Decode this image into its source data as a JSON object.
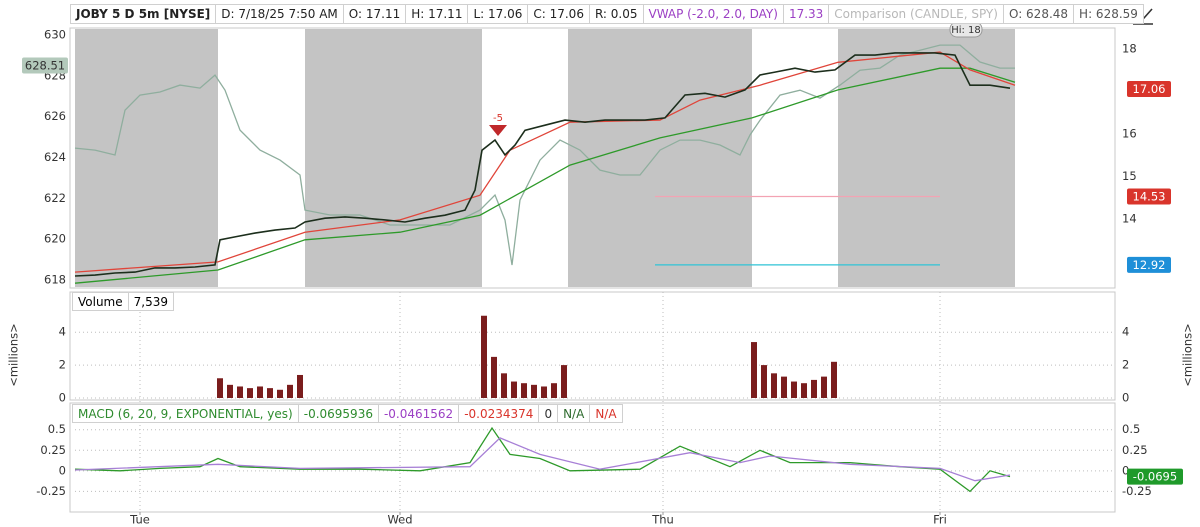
{
  "header": {
    "items": [
      {
        "text": "JOBY 5 D 5m [NYSE]",
        "color": "#222222",
        "bold": true
      },
      {
        "text": "D: 7/18/25 7:50 AM",
        "color": "#222222"
      },
      {
        "text": "O: 17.11",
        "color": "#222222"
      },
      {
        "text": "H: 17.11",
        "color": "#222222"
      },
      {
        "text": "L: 17.06",
        "color": "#222222"
      },
      {
        "text": "C: 17.06",
        "color": "#222222"
      },
      {
        "text": "R: 0.05",
        "color": "#222222"
      },
      {
        "text": "VWAP (-2.0, 2.0, DAY)",
        "color": "#9b3fc4"
      },
      {
        "text": "17.33",
        "color": "#9b3fc4"
      },
      {
        "text": "Comparison (CANDLE, SPY)",
        "color": "#b8b8b8"
      },
      {
        "text": "O: 628.48",
        "color": "#555555"
      },
      {
        "text": "H: 628.59",
        "color": "#555555"
      }
    ]
  },
  "chart_data": [
    {
      "type": "line",
      "ylim": [
        617.65,
        630.25
      ],
      "yticks": [
        618,
        620,
        622,
        624,
        626,
        628,
        630
      ],
      "y2lim": [
        12.4,
        18.45
      ],
      "y2ticks": [
        14,
        15,
        16,
        18
      ],
      "annotations": [
        "Hi: 18",
        "-5"
      ],
      "series": [
        {
          "name": "SPY",
          "color": "#8fae9e",
          "axis": "y",
          "x": [
            0,
            2,
            4,
            5,
            6.5,
            8.5,
            10.5,
            12.5,
            14,
            15,
            16.5,
            18.5,
            20.5,
            22.5,
            23,
            25.5,
            28.5,
            31.5,
            34.5,
            37.5,
            40.5,
            42,
            43,
            43.7,
            44.5,
            46.5,
            48.5,
            50.5,
            52.5,
            54.5,
            56.5,
            58.5,
            60.5,
            62.5,
            64.5,
            66.5,
            67.5,
            68.5,
            70.5,
            72.5,
            74.5,
            76.5,
            78.5,
            80.5,
            82.5,
            84.5,
            86.5,
            88.5,
            90.5,
            92.5,
            94
          ],
          "values": [
            624.46,
            624.36,
            624.12,
            626.32,
            627.06,
            627.21,
            627.55,
            627.4,
            628.04,
            627.3,
            625.34,
            624.36,
            623.87,
            623.14,
            621.42,
            621.18,
            621.18,
            620.69,
            620.69,
            620.69,
            621.42,
            622.16,
            620.93,
            618.73,
            621.91,
            623.87,
            624.85,
            624.36,
            623.38,
            623.14,
            623.14,
            624.36,
            624.85,
            624.85,
            624.61,
            624.12,
            625.1,
            625.83,
            627.06,
            627.3,
            626.91,
            627.55,
            628.28,
            628.38,
            629.02,
            629.26,
            629.51,
            629.51,
            628.68,
            628.38,
            628.38
          ]
        },
        {
          "color": "#2e9a2a",
          "axis": "y2",
          "x": [
            0,
            14.3,
            23,
            32.5,
            40.5,
            49.5,
            58.5,
            67.7,
            76.3,
            86.5,
            89.5,
            94
          ],
          "values": [
            12.49,
            12.8,
            13.51,
            13.69,
            14.09,
            15.27,
            15.91,
            16.38,
            17.04,
            17.55,
            17.55,
            17.22
          ]
        },
        {
          "color": "#e0453a",
          "axis": "y2",
          "x": [
            0,
            14.3,
            23,
            32.5,
            40.5,
            43.5,
            49.5,
            58.5,
            62.5,
            68.5,
            76.3,
            86.5,
            89.5,
            94
          ],
          "values": [
            12.75,
            12.99,
            13.69,
            13.98,
            14.56,
            15.62,
            16.28,
            16.33,
            16.8,
            17.15,
            17.69,
            17.93,
            17.51,
            17.15
          ]
        },
        {
          "name": "JOBY",
          "color": "#1c2e1c",
          "axis": "y2",
          "x": [
            0,
            2,
            4,
            6,
            8,
            10,
            12,
            14,
            14.5,
            16,
            18,
            20,
            22,
            23,
            25,
            27,
            29,
            31,
            33,
            35,
            37,
            39,
            40,
            40.7,
            42,
            43,
            44,
            45,
            47,
            49,
            51,
            53,
            55,
            57,
            59,
            61,
            63,
            65,
            67,
            68.5,
            70,
            72,
            74,
            76,
            78,
            80,
            82,
            84,
            86,
            88,
            89.5,
            91.5,
            93.5
          ],
          "values": [
            12.66,
            12.68,
            12.73,
            12.75,
            12.85,
            12.85,
            12.87,
            12.92,
            13.51,
            13.58,
            13.67,
            13.74,
            13.79,
            13.93,
            14.02,
            14.05,
            14.02,
            13.98,
            13.93,
            14.02,
            14.09,
            14.21,
            14.68,
            15.62,
            15.86,
            15.51,
            15.74,
            16.09,
            16.21,
            16.33,
            16.28,
            16.33,
            16.33,
            16.33,
            16.38,
            16.92,
            16.96,
            16.87,
            17.04,
            17.39,
            17.46,
            17.55,
            17.46,
            17.51,
            17.86,
            17.86,
            17.91,
            17.91,
            17.91,
            17.86,
            17.15,
            17.15,
            17.08
          ]
        }
      ],
      "levels": [
        {
          "value": 17.06,
          "axis": "y2",
          "color": "#d9342b",
          "text_color": "#ffffff"
        },
        {
          "value": 14.53,
          "axis": "y2",
          "color": "#d9342b",
          "text_color": "#ffffff",
          "x": [
            58,
            86.5
          ],
          "line_color": "#f3a3b3"
        },
        {
          "value": 12.92,
          "axis": "y2",
          "color": "#1e8fd8",
          "text_color": "#ffffff",
          "x": [
            58,
            86.5
          ],
          "line_color": "#2fc3d6"
        },
        {
          "value": 628.51,
          "axis": "y",
          "color": "#b3c9bb",
          "text_color": "#333333"
        }
      ]
    },
    {
      "type": "bar",
      "title": "Volume",
      "last_value": "7,539",
      "y_label": "<millions>",
      "ylim": [
        0,
        6.2
      ],
      "yticks": [
        0,
        2,
        4
      ],
      "grid": true,
      "color": "#7a1d1d",
      "x": [
        14.5,
        15.5,
        16.5,
        17.5,
        18.5,
        19.5,
        20.5,
        21.5,
        22.5,
        40.9,
        41.9,
        42.9,
        43.9,
        44.9,
        45.9,
        46.9,
        47.9,
        48.9,
        67.9,
        68.9,
        69.9,
        70.9,
        71.9,
        72.9,
        73.9,
        74.9,
        75.9
      ],
      "values": [
        1.2,
        0.8,
        0.7,
        0.6,
        0.7,
        0.6,
        0.5,
        0.8,
        1.4,
        5.0,
        2.5,
        1.5,
        1.0,
        0.9,
        0.8,
        0.7,
        0.9,
        2.0,
        3.4,
        2.0,
        1.5,
        1.3,
        1.0,
        0.9,
        1.1,
        1.3,
        2.2
      ]
    },
    {
      "type": "line",
      "header": [
        {
          "text": "MACD (6, 20, 9, EXPONENTIAL, yes)",
          "color": "#2e8b2e"
        },
        {
          "text": "-0.0695936",
          "color": "#2e8b2e"
        },
        {
          "text": "-0.0461562",
          "color": "#9b3fc4"
        },
        {
          "text": "-0.0234374",
          "color": "#d9342b"
        },
        {
          "text": "0",
          "color": "#333333"
        },
        {
          "text": "N/A",
          "color": "#2e6b2e"
        },
        {
          "text": "N/A",
          "color": "#d9342b"
        }
      ],
      "xlim": [
        0,
        104
      ],
      "xticks": [
        {
          "value": 6.5,
          "label": "Tue"
        },
        {
          "value": 32.5,
          "label": "Wed"
        },
        {
          "value": 58.8,
          "label": "Thu"
        },
        {
          "value": 86.5,
          "label": "Fri"
        }
      ],
      "ylim": [
        -0.5,
        0.8
      ],
      "yticks": [
        -0.25,
        0,
        0.25,
        0.5
      ],
      "grid": true,
      "series": [
        {
          "color": "#2e9a2a",
          "axis": "y",
          "x": [
            0,
            4.5,
            8.5,
            12.5,
            14.3,
            16.5,
            22.5,
            28.5,
            34.5,
            39.5,
            41.7,
            43.5,
            46.5,
            49.5,
            56.5,
            60.5,
            62.5,
            65.5,
            68.5,
            71.5,
            77.5,
            82.5,
            86.5,
            89.5,
            91.5,
            93.5
          ],
          "values": [
            0.02,
            0,
            0.03,
            0.05,
            0.15,
            0.05,
            0.02,
            0.02,
            0,
            0.1,
            0.52,
            0.2,
            0.15,
            0,
            0.02,
            0.3,
            0.2,
            0.05,
            0.25,
            0.1,
            0.1,
            0.05,
            0.02,
            -0.25,
            0,
            -0.07
          ]
        },
        {
          "color": "#a77fd6",
          "axis": "y",
          "x": [
            0,
            14.3,
            22.5,
            39.5,
            42.5,
            46.5,
            52.5,
            61.5,
            66.5,
            69.5,
            77.5,
            86.5,
            90,
            93.5
          ],
          "values": [
            0.01,
            0.08,
            0.03,
            0.05,
            0.4,
            0.2,
            0.02,
            0.22,
            0.1,
            0.18,
            0.08,
            0.03,
            -0.12,
            -0.05
          ]
        }
      ],
      "levels": [
        {
          "value": -0.0695,
          "axis": "y",
          "color": "#1f9a2a",
          "text_color": "#ffffff"
        }
      ]
    }
  ]
}
